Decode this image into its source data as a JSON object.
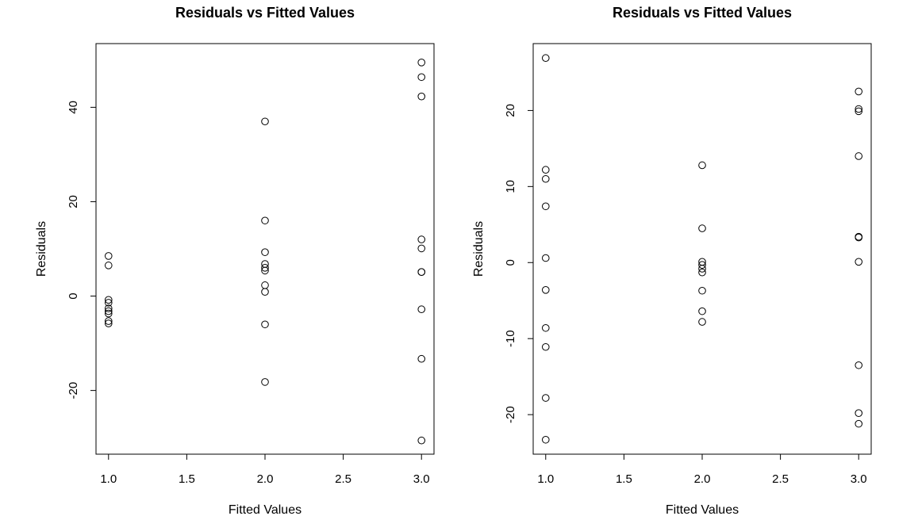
{
  "chart_data": [
    {
      "type": "scatter",
      "title": "Residuals vs Fitted Values",
      "xlabel": "Fitted Values",
      "ylabel": "Residuals",
      "xlim": [
        0.92,
        3.08
      ],
      "ylim": [
        -33.5,
        53.5
      ],
      "x_ticks": [
        1.0,
        1.5,
        2.0,
        2.5,
        3.0
      ],
      "x_tick_labels": [
        "1.0",
        "1.5",
        "2.0",
        "2.5",
        "3.0"
      ],
      "y_ticks": [
        -20,
        0,
        20,
        40
      ],
      "y_tick_labels": [
        "-20",
        "0",
        "20",
        "40"
      ],
      "grid": false,
      "points": [
        {
          "x": 1,
          "y": 8.5
        },
        {
          "x": 1,
          "y": 6.5
        },
        {
          "x": 1,
          "y": -0.8
        },
        {
          "x": 1,
          "y": -1.4
        },
        {
          "x": 1,
          "y": -2.6
        },
        {
          "x": 1,
          "y": -3.2
        },
        {
          "x": 1,
          "y": -3.7
        },
        {
          "x": 1,
          "y": -5.3
        },
        {
          "x": 1,
          "y": -5.8
        },
        {
          "x": 2,
          "y": 37
        },
        {
          "x": 2,
          "y": 16
        },
        {
          "x": 2,
          "y": 9.3
        },
        {
          "x": 2,
          "y": 6.8
        },
        {
          "x": 2,
          "y": 6
        },
        {
          "x": 2,
          "y": 5.4
        },
        {
          "x": 2,
          "y": 2.3
        },
        {
          "x": 2,
          "y": 0.9
        },
        {
          "x": 2,
          "y": -6
        },
        {
          "x": 2,
          "y": -18.2
        },
        {
          "x": 3,
          "y": 49.5
        },
        {
          "x": 3,
          "y": 46.4
        },
        {
          "x": 3,
          "y": 42.3
        },
        {
          "x": 3,
          "y": 12
        },
        {
          "x": 3,
          "y": 10.1
        },
        {
          "x": 3,
          "y": 5.1
        },
        {
          "x": 3,
          "y": 5.1
        },
        {
          "x": 3,
          "y": -2.8
        },
        {
          "x": 3,
          "y": -13.3
        },
        {
          "x": 3,
          "y": -30.6
        }
      ]
    },
    {
      "type": "scatter",
      "title": "Residuals vs Fitted Values",
      "xlabel": "Fitted Values",
      "ylabel": "Residuals",
      "xlim": [
        0.92,
        3.08
      ],
      "ylim": [
        -25.2,
        28.8
      ],
      "x_ticks": [
        1.0,
        1.5,
        2.0,
        2.5,
        3.0
      ],
      "x_tick_labels": [
        "1.0",
        "1.5",
        "2.0",
        "2.5",
        "3.0"
      ],
      "y_ticks": [
        -20,
        -10,
        0,
        10,
        20
      ],
      "y_tick_labels": [
        "-20",
        "-10",
        "0",
        "10",
        "20"
      ],
      "grid": false,
      "points": [
        {
          "x": 1,
          "y": 26.9
        },
        {
          "x": 1,
          "y": 12.2
        },
        {
          "x": 1,
          "y": 11
        },
        {
          "x": 1,
          "y": 7.4
        },
        {
          "x": 1,
          "y": 0.6
        },
        {
          "x": 1,
          "y": -3.6
        },
        {
          "x": 1,
          "y": -8.6
        },
        {
          "x": 1,
          "y": -11.1
        },
        {
          "x": 1,
          "y": -17.8
        },
        {
          "x": 1,
          "y": -23.3
        },
        {
          "x": 2,
          "y": 12.8
        },
        {
          "x": 2,
          "y": 4.5
        },
        {
          "x": 2,
          "y": 0.1
        },
        {
          "x": 2,
          "y": -0.3
        },
        {
          "x": 2,
          "y": -0.8
        },
        {
          "x": 2,
          "y": -1.3
        },
        {
          "x": 2,
          "y": -3.7
        },
        {
          "x": 2,
          "y": -6.4
        },
        {
          "x": 2,
          "y": -7.8
        },
        {
          "x": 3,
          "y": 22.5
        },
        {
          "x": 3,
          "y": 20.2
        },
        {
          "x": 3,
          "y": 19.9
        },
        {
          "x": 3,
          "y": 14
        },
        {
          "x": 3,
          "y": 3.4
        },
        {
          "x": 3,
          "y": 3.3
        },
        {
          "x": 3,
          "y": 0.1
        },
        {
          "x": 3,
          "y": -13.5
        },
        {
          "x": 3,
          "y": -19.8
        },
        {
          "x": 3,
          "y": -21.2
        }
      ]
    }
  ]
}
